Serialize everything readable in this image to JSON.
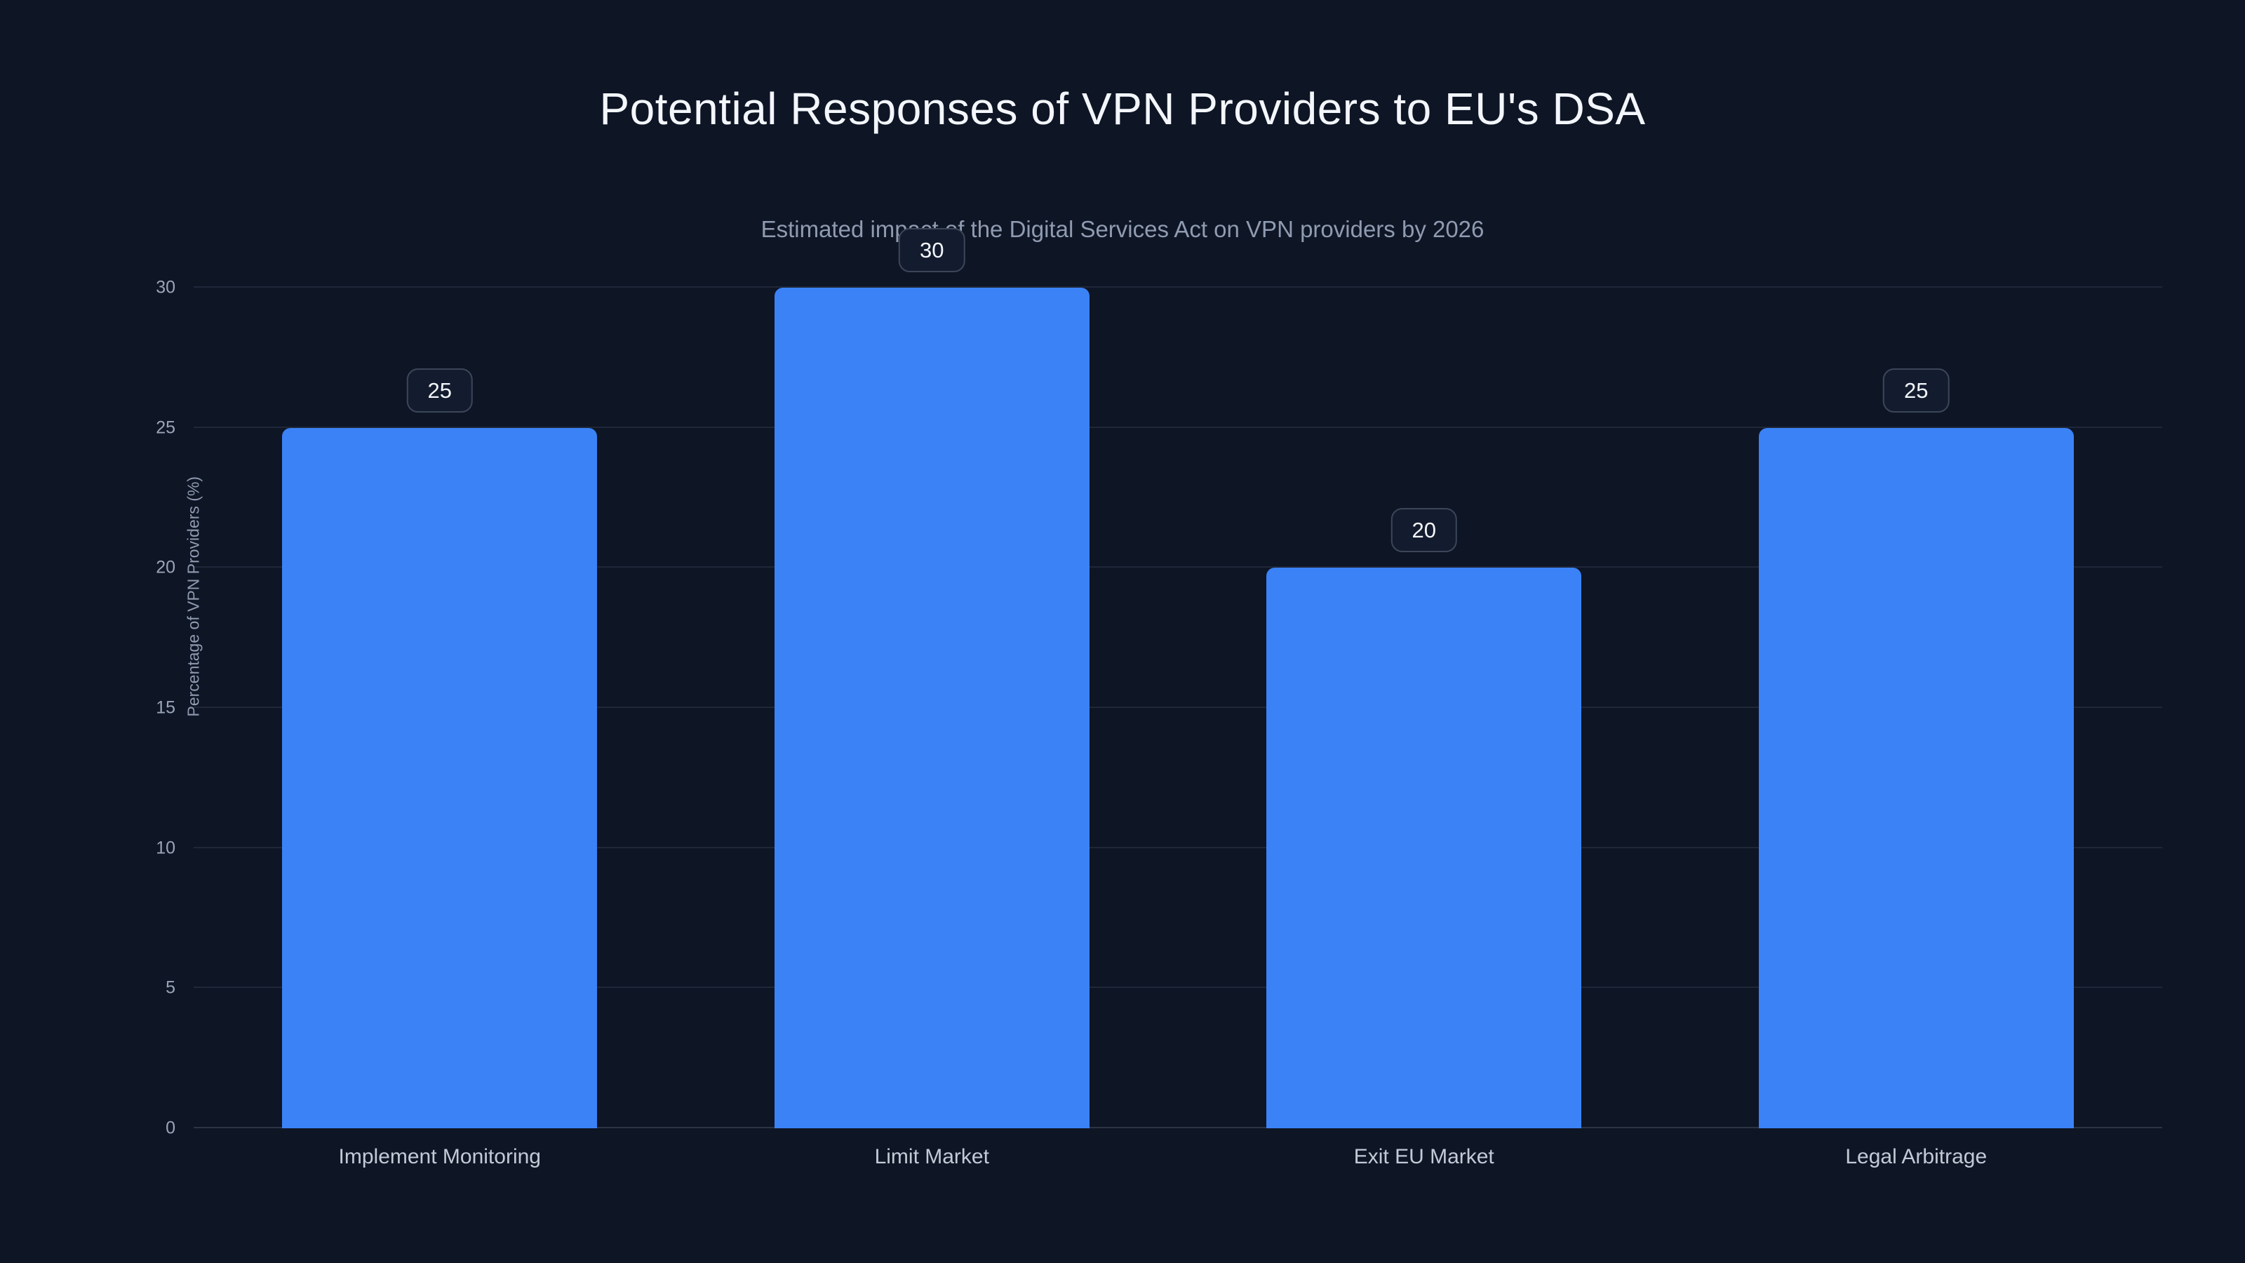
{
  "chart_data": {
    "type": "bar",
    "title": "Potential Responses of VPN Providers to EU's DSA",
    "subtitle": "Estimated impact of the Digital Services Act on VPN providers by 2026",
    "ylabel": "Percentage of VPN Providers (%)",
    "categories": [
      "Implement Monitoring",
      "Limit Market",
      "Exit EU Market",
      "Legal Arbitrage"
    ],
    "values": [
      25,
      30,
      20,
      25
    ],
    "yticks": [
      0,
      5,
      10,
      15,
      20,
      25,
      30
    ],
    "ylim": [
      0,
      30
    ],
    "grid": true,
    "legend": false,
    "value_labels": true,
    "colors": {
      "bar": "#3b82f6",
      "background": "#0e1525",
      "title_text": "#f3f6fb",
      "subtitle_text": "#8f9bb0",
      "axis_text": "#9aa5b8",
      "gridline": "rgba(148,163,184,0.13)",
      "badge_border": "#3c4659",
      "badge_background": "#131c2e"
    }
  }
}
